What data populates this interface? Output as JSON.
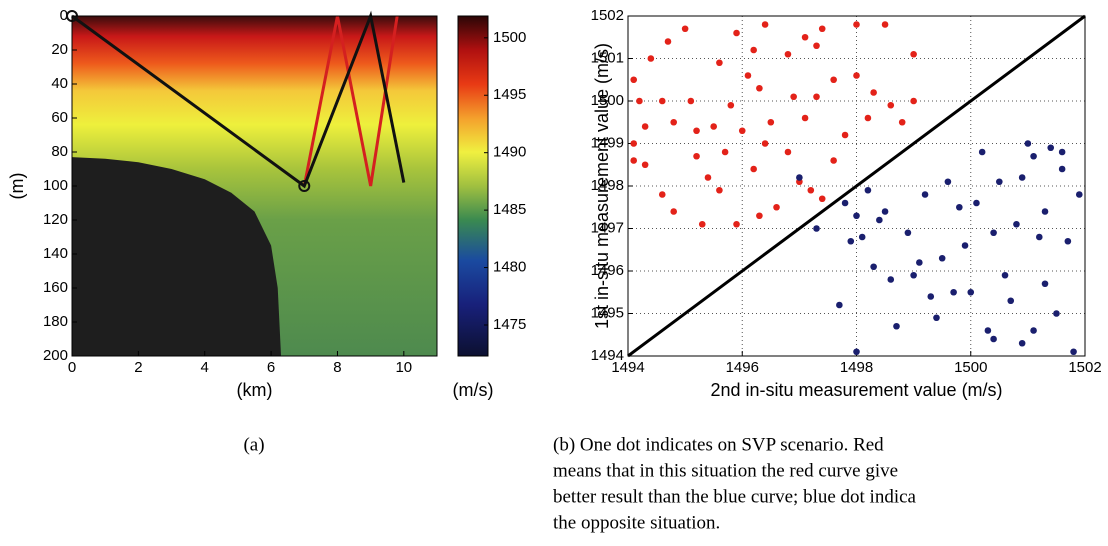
{
  "chart_data": [
    {
      "type": "line",
      "xlabel": "(km)",
      "ylabel": "(m)",
      "xlim": [
        0,
        11
      ],
      "ylim": [
        0,
        200
      ],
      "y_reversed": true,
      "xticks": [
        0,
        2,
        4,
        6,
        8,
        10
      ],
      "yticks": [
        0,
        20,
        40,
        60,
        80,
        100,
        120,
        140,
        160,
        180,
        200
      ],
      "seabed": {
        "color": "#1e1e1e",
        "x": [
          0,
          1,
          2,
          3,
          4,
          4.8,
          5.5,
          6,
          6.2,
          6.3
        ],
        "values": [
          83,
          84,
          86,
          90,
          96,
          104,
          115,
          135,
          160,
          200
        ]
      },
      "series": [
        {
          "color": "#d42020",
          "x": [
            7,
            8,
            9,
            9.8
          ],
          "values": [
            100,
            0,
            100,
            0
          ]
        },
        {
          "color": "#111111",
          "x": [
            0,
            7,
            9,
            10
          ],
          "values": [
            0,
            100,
            0,
            98
          ]
        }
      ],
      "markers": {
        "color": "#111111",
        "x": [
          0,
          7
        ],
        "values": [
          0,
          100
        ]
      },
      "colorbar": {
        "label": "(m/s)",
        "zlim": [
          1472.3,
          1501.9
        ],
        "zticks": [
          1475,
          1480,
          1485,
          1490,
          1495,
          1500
        ]
      }
    },
    {
      "type": "scatter",
      "xlabel": "2nd in-situ measurement value (m/s)",
      "ylabel": "1st in-situ measurement value (m/s)",
      "xlim": [
        1494,
        1502
      ],
      "ylim": [
        1494,
        1502
      ],
      "xticks": [
        1494,
        1496,
        1498,
        1500,
        1502
      ],
      "yticks": [
        1494,
        1495,
        1496,
        1497,
        1498,
        1499,
        1500,
        1501,
        1502
      ],
      "grid": true,
      "reference_line": {
        "color": "#000000",
        "x": [
          1494,
          1502
        ],
        "values": [
          1494,
          1502
        ]
      },
      "series": [
        {
          "color": "#e32219",
          "x": [
            1494.7,
            1495,
            1495.6,
            1495.9,
            1496.2,
            1496.4,
            1496.8,
            1497.1,
            1497.4,
            1497.3,
            1498,
            1498.5,
            1499,
            1494.4,
            1494.1,
            1494.2,
            1494.3,
            1494.6,
            1494.8,
            1495.1,
            1495.2,
            1495.5,
            1495.8,
            1496.1,
            1496.3,
            1496.5,
            1496.9,
            1497.1,
            1497.3,
            1497.6,
            1498,
            1498.3,
            1498.6,
            1499,
            1498.8,
            1494.1,
            1494.3,
            1494.6,
            1494.8,
            1495.2,
            1495.4,
            1495.6,
            1495.9,
            1496.2,
            1496.4,
            1496.8,
            1497,
            1496.6,
            1497.4,
            1497.6,
            1495.7,
            1496,
            1497.8,
            1498.2,
            1494.1,
            1495.3,
            1496.3,
            1497.2
          ],
          "values": [
            1501.4,
            1501.7,
            1500.9,
            1501.6,
            1501.2,
            1501.8,
            1501.1,
            1501.5,
            1501.7,
            1501.3,
            1501.8,
            1501.8,
            1501.1,
            1501,
            1500.5,
            1500,
            1499.4,
            1500,
            1499.5,
            1500,
            1499.3,
            1499.4,
            1499.9,
            1500.6,
            1500.3,
            1499.5,
            1500.1,
            1499.6,
            1500.1,
            1500.5,
            1500.6,
            1500.2,
            1499.9,
            1500,
            1499.5,
            1499,
            1498.5,
            1497.8,
            1497.4,
            1498.7,
            1498.2,
            1497.9,
            1497.1,
            1498.4,
            1499,
            1498.8,
            1498.1,
            1497.5,
            1497.7,
            1498.6,
            1498.8,
            1499.3,
            1499.2,
            1499.6,
            1498.6,
            1497.1,
            1497.3,
            1497.9
          ]
        },
        {
          "color": "#1a1f6e",
          "x": [
            1497,
            1497.3,
            1497.7,
            1498,
            1498.1,
            1498.3,
            1498.5,
            1498.6,
            1498.9,
            1498.7,
            1499,
            1499.2,
            1499.3,
            1499.5,
            1499.6,
            1499.8,
            1499.9,
            1500,
            1500.2,
            1500.3,
            1500.4,
            1500.5,
            1500.7,
            1500.8,
            1500.9,
            1501,
            1501.1,
            1501.2,
            1501.3,
            1501.4,
            1501.5,
            1501.6,
            1501.7,
            1501.8,
            1501.9,
            1501.1,
            1500.6,
            1499.4,
            1498.4,
            1498.2,
            1497.8,
            1498,
            1499.1,
            1500.1,
            1500.9,
            1501.3,
            1501.6,
            1497.9,
            1499.7,
            1500.4
          ],
          "values": [
            1498.2,
            1497,
            1495.2,
            1494.1,
            1496.8,
            1496.1,
            1497.4,
            1495.8,
            1496.9,
            1494.7,
            1495.9,
            1497.8,
            1495.4,
            1496.3,
            1498.1,
            1497.5,
            1496.6,
            1495.5,
            1498.8,
            1494.6,
            1496.9,
            1498.1,
            1495.3,
            1497.1,
            1494.3,
            1499,
            1498.7,
            1496.8,
            1495.7,
            1498.9,
            1495,
            1498.4,
            1496.7,
            1494.1,
            1497.8,
            1494.6,
            1495.9,
            1494.9,
            1497.2,
            1497.9,
            1497.6,
            1497.3,
            1496.2,
            1497.6,
            1498.2,
            1497.4,
            1498.8,
            1496.7,
            1495.5,
            1494.4
          ]
        }
      ]
    }
  ],
  "captions": {
    "a": "(a)",
    "b": [
      "(b) One dot indicates on SVP scenario. Red",
      "means that in this situation the red curve give",
      "better result than the blue curve; blue dot indica",
      "the opposite situation."
    ]
  }
}
